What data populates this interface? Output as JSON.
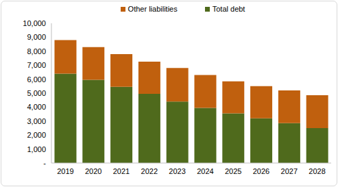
{
  "chart_data": {
    "type": "bar",
    "stacked": true,
    "grid": false,
    "legend": "top",
    "categories": [
      "2019",
      "2020",
      "2021",
      "2022",
      "2023",
      "2024",
      "2025",
      "2026",
      "2027",
      "2028"
    ],
    "series": [
      {
        "name": "Total debt",
        "color": "#4f6a1c",
        "values": [
          6400,
          5950,
          5450,
          4950,
          4400,
          3950,
          3550,
          3200,
          2850,
          2500
        ]
      },
      {
        "name": "Other liabilities",
        "color": "#c0600e",
        "values": [
          2400,
          2350,
          2350,
          2300,
          2400,
          2350,
          2300,
          2300,
          2350,
          2350
        ]
      }
    ],
    "ylim": [
      0,
      10000
    ],
    "yticks": [
      {
        "value": 0,
        "label": "-"
      },
      {
        "value": 1000,
        "label": "1,000"
      },
      {
        "value": 2000,
        "label": "2,000"
      },
      {
        "value": 3000,
        "label": "3,000"
      },
      {
        "value": 4000,
        "label": "4,000"
      },
      {
        "value": 5000,
        "label": "5,000"
      },
      {
        "value": 6000,
        "label": "6,000"
      },
      {
        "value": 7000,
        "label": "7,000"
      },
      {
        "value": 8000,
        "label": "8,000"
      },
      {
        "value": 9000,
        "label": "9,000"
      },
      {
        "value": 10000,
        "label": "10,000"
      }
    ]
  }
}
